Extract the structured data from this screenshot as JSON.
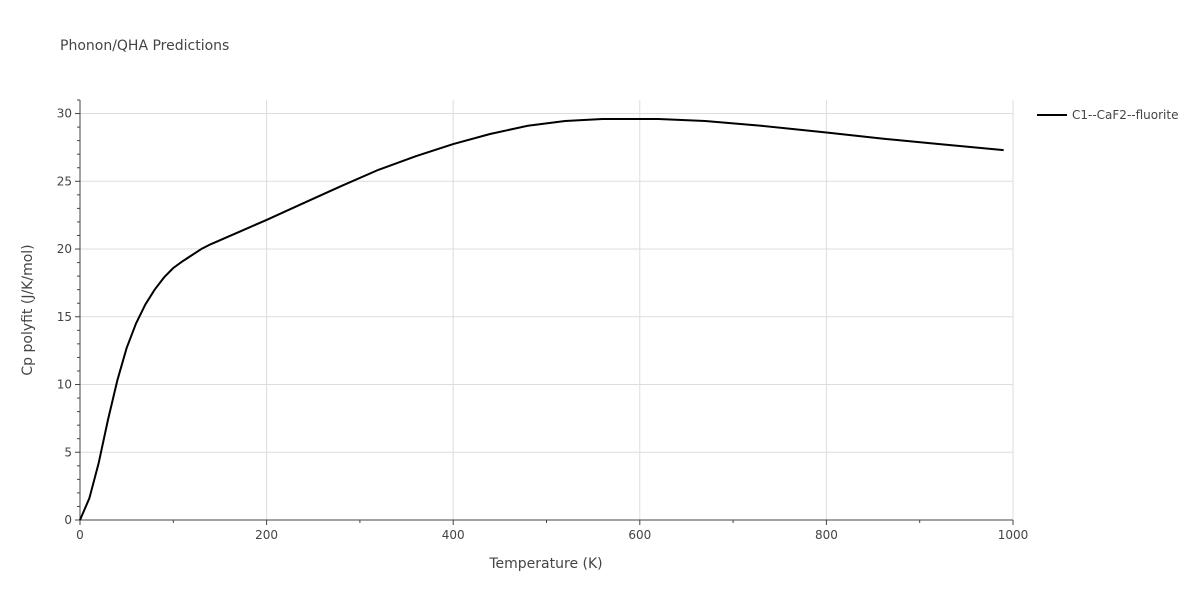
{
  "chart_data": {
    "type": "line",
    "title": "Phonon/QHA Predictions",
    "xlabel": "Temperature (K)",
    "ylabel": "Cp polyfit (J/K/mol)",
    "xlim": [
      0,
      1000
    ],
    "ylim": [
      0,
      31
    ],
    "grid": true,
    "legend_position": "top-right",
    "x_ticks": [
      0,
      200,
      400,
      600,
      800,
      1000
    ],
    "y_ticks": [
      0,
      5,
      10,
      15,
      20,
      25,
      30
    ],
    "series": [
      {
        "name": "C1--CaF2--fluorite",
        "color": "#000000",
        "x": [
          0,
          10,
          20,
          30,
          40,
          50,
          60,
          70,
          80,
          90,
          100,
          110,
          120,
          130,
          140,
          160,
          180,
          200,
          240,
          280,
          320,
          360,
          400,
          440,
          480,
          520,
          560,
          600,
          620,
          670,
          730,
          800,
          860,
          920,
          990
        ],
        "y": [
          0,
          1.6,
          4.2,
          7.4,
          10.3,
          12.7,
          14.5,
          15.9,
          17.0,
          17.9,
          18.6,
          19.1,
          19.55,
          20.0,
          20.35,
          20.95,
          21.55,
          22.15,
          23.4,
          24.65,
          25.85,
          26.85,
          27.75,
          28.5,
          29.1,
          29.45,
          29.6,
          29.6,
          29.6,
          29.45,
          29.1,
          28.6,
          28.15,
          27.75,
          27.3
        ]
      }
    ]
  }
}
